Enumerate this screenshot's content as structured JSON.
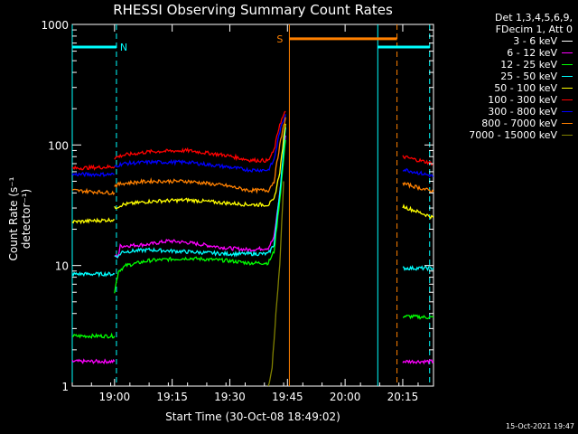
{
  "chart_data": {
    "type": "line",
    "title": "RHESSI Observing Summary Count Rates",
    "xlabel": "Start Time (30-Oct-08 18:49:02)",
    "ylabel": "Count Rate (s⁻¹ detector⁻¹)",
    "xlim": [
      0,
      94
    ],
    "x_ticks": [
      {
        "label": "19:00",
        "x": 11
      },
      {
        "label": "19:15",
        "x": 26
      },
      {
        "label": "19:30",
        "x": 41
      },
      {
        "label": "19:45",
        "x": 56
      },
      {
        "label": "20:00",
        "x": 71
      },
      {
        "label": "20:15",
        "x": 86
      }
    ],
    "yscale": "log",
    "ylim": [
      1,
      1000
    ],
    "y_ticks": [
      {
        "label": "1",
        "v": 1
      },
      {
        "label": "10",
        "v": 10
      },
      {
        "label": "100",
        "v": 100
      },
      {
        "label": "1000",
        "v": 1000
      }
    ],
    "legend": {
      "header": [
        "Det 1,3,4,5,6,9,",
        "FDecim 1, Att 0"
      ],
      "entries": [
        {
          "label": "3 - 6 keV",
          "color": "#ffffff"
        },
        {
          "label": "6 - 12 keV",
          "color": "#ff00ff"
        },
        {
          "label": "12 - 25 keV",
          "color": "#00ff00"
        },
        {
          "label": "25 - 50 keV",
          "color": "#00ffff"
        },
        {
          "label": "50 - 100 keV",
          "color": "#ffff00"
        },
        {
          "label": "100 - 300 keV",
          "color": "#ff0000"
        },
        {
          "label": "300 - 800 keV",
          "color": "#0000ff"
        },
        {
          "label": "800 - 7000 keV",
          "color": "#ff8000"
        },
        {
          "label": "7000 - 15000 keV",
          "color": "#808000"
        }
      ]
    },
    "series": [
      {
        "name": "3 - 6 keV",
        "color": "#000000",
        "outline": true,
        "segments": [
          [
            [
              13,
              10
            ],
            [
              20,
              11
            ],
            [
              30,
              10.5
            ],
            [
              36,
              9
            ],
            [
              41,
              8.5
            ],
            [
              47,
              9
            ],
            [
              51,
              10
            ],
            [
              52.5,
              12
            ],
            [
              54,
              30
            ],
            [
              55.5,
              100
            ]
          ]
        ]
      },
      {
        "name": "6 - 12 keV",
        "color": "#ff00ff",
        "segments": [
          [
            [
              0,
              1.6
            ],
            [
              11,
              1.6
            ]
          ],
          [
            [
              11,
              12
            ],
            [
              12,
              12
            ],
            [
              12.5,
              14.5
            ],
            [
              20,
              15
            ],
            [
              25,
              16
            ],
            [
              30,
              15.5
            ],
            [
              40,
              14
            ],
            [
              46,
              13.5
            ],
            [
              51,
              14
            ],
            [
              52.5,
              17
            ],
            [
              54,
              40
            ],
            [
              55.5,
              120
            ]
          ],
          [
            [
              86,
              1.6
            ],
            [
              94,
              1.6
            ]
          ]
        ]
      },
      {
        "name": "12 - 25 keV",
        "color": "#00ff00",
        "segments": [
          [
            [
              0,
              2.6
            ],
            [
              11,
              2.6
            ]
          ],
          [
            [
              11,
              6
            ],
            [
              12,
              9
            ],
            [
              14,
              10
            ],
            [
              20,
              11
            ],
            [
              30,
              11.5
            ],
            [
              40,
              11
            ],
            [
              46,
              10.5
            ],
            [
              51,
              10.5
            ],
            [
              52.5,
              13
            ],
            [
              54,
              35
            ],
            [
              55.5,
              110
            ]
          ],
          [
            [
              86,
              3.8
            ],
            [
              94,
              3.7
            ]
          ]
        ]
      },
      {
        "name": "25 - 50 keV",
        "color": "#00ffff",
        "segments": [
          [
            [
              0,
              8.5
            ],
            [
              11,
              8.5
            ]
          ],
          [
            [
              11,
              12
            ],
            [
              12,
              12
            ],
            [
              13,
              13
            ],
            [
              20,
              13.5
            ],
            [
              30,
              13
            ],
            [
              40,
              12.5
            ],
            [
              46,
              12.5
            ],
            [
              51,
              12.5
            ],
            [
              52.5,
              15
            ],
            [
              54,
              40
            ],
            [
              55.5,
              140
            ]
          ],
          [
            [
              86,
              9.5
            ],
            [
              94,
              9.5
            ]
          ]
        ]
      },
      {
        "name": "50 - 100 keV",
        "color": "#ffff00",
        "segments": [
          [
            [
              0,
              23
            ],
            [
              11,
              24
            ]
          ],
          [
            [
              11,
              30
            ],
            [
              13,
              32
            ],
            [
              20,
              34
            ],
            [
              30,
              35
            ],
            [
              40,
              33
            ],
            [
              46,
              32
            ],
            [
              51,
              32
            ],
            [
              52.5,
              35
            ],
            [
              54,
              60
            ],
            [
              55.5,
              150
            ]
          ],
          [
            [
              86,
              31
            ],
            [
              94,
              25
            ]
          ]
        ]
      },
      {
        "name": "100 - 300 keV",
        "color": "#ff0000",
        "segments": [
          [
            [
              0,
              64
            ],
            [
              11,
              66
            ]
          ],
          [
            [
              11,
              78
            ],
            [
              13,
              82
            ],
            [
              20,
              88
            ],
            [
              30,
              90
            ],
            [
              40,
              82
            ],
            [
              46,
              75
            ],
            [
              51,
              74
            ],
            [
              52.5,
              90
            ],
            [
              54,
              150
            ],
            [
              55.5,
              190
            ]
          ],
          [
            [
              86,
              80
            ],
            [
              94,
              70
            ]
          ]
        ]
      },
      {
        "name": "300 - 800 keV",
        "color": "#0000ff",
        "segments": [
          [
            [
              0,
              57
            ],
            [
              11,
              57
            ]
          ],
          [
            [
              11,
              66
            ],
            [
              13,
              70
            ],
            [
              20,
              72
            ],
            [
              30,
              72
            ],
            [
              40,
              66
            ],
            [
              46,
              62
            ],
            [
              51,
              62
            ],
            [
              52.5,
              75
            ],
            [
              54,
              130
            ],
            [
              55.5,
              180
            ]
          ],
          [
            [
              86,
              63
            ],
            [
              94,
              55
            ]
          ]
        ]
      },
      {
        "name": "800 - 7000 keV",
        "color": "#ff8000",
        "segments": [
          [
            [
              0,
              42
            ],
            [
              11,
              40
            ]
          ],
          [
            [
              11,
              46
            ],
            [
              13,
              48
            ],
            [
              20,
              50
            ],
            [
              30,
              50
            ],
            [
              40,
              46
            ],
            [
              46,
              42
            ],
            [
              51,
              42
            ],
            [
              52.5,
              50
            ],
            [
              54,
              100
            ],
            [
              55.5,
              170
            ]
          ],
          [
            [
              86,
              48
            ],
            [
              94,
              41
            ]
          ]
        ]
      },
      {
        "name": "7000 - 15000 keV",
        "color": "#808000",
        "segments": [
          [
            [
              51,
              1
            ],
            [
              52,
              1.4
            ],
            [
              53,
              4
            ],
            [
              54,
              10
            ],
            [
              55,
              50
            ]
          ]
        ]
      }
    ],
    "annotations": {
      "flags": [
        {
          "label": "N",
          "color": "#00ffff",
          "x_start": 0,
          "x_end": 11.5,
          "y": 650
        },
        {
          "label": "S",
          "color": "#ff8000",
          "x_start": 56.5,
          "x_end": 84.5,
          "y": 760
        },
        {
          "label": "",
          "color": "#00ffff",
          "x_start": 79.5,
          "x_end": 93,
          "y": 650
        }
      ],
      "vlines_solid": [
        {
          "x": 0,
          "color": "#00ffff"
        },
        {
          "x": 56.5,
          "color": "#ff8000"
        },
        {
          "x": 79.5,
          "color": "#00ffff"
        }
      ],
      "vlines_dashed": [
        {
          "x": 11.5,
          "color": "#00ffff"
        },
        {
          "x": 84.5,
          "color": "#ff8000"
        },
        {
          "x": 93,
          "color": "#00ffff"
        }
      ]
    }
  },
  "timestamp": "15-Oct-2021 19:47"
}
